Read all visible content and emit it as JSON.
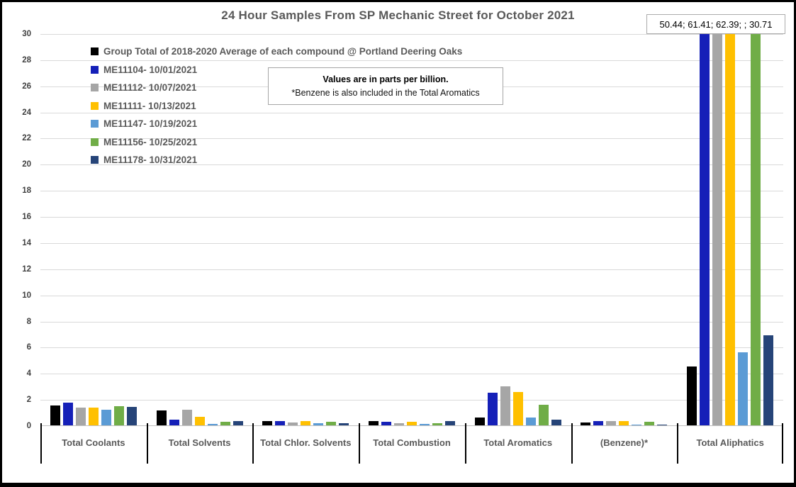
{
  "chart_data": {
    "type": "bar",
    "title": "24 Hour Samples From SP Mechanic Street for October 2021",
    "value_unit": "parts per billion",
    "categories": [
      "Total Coolants",
      "Total Solvents",
      "Total Chlor. Solvents",
      "Total Combustion",
      "Total Aromatics",
      "(Benzene)*",
      "Total Aliphatics"
    ],
    "series": [
      {
        "name": "Group Total of 2018-2020 Average of each compound @ Portland Deering Oaks",
        "color": "#000000",
        "values": [
          1.5,
          1.15,
          0.35,
          0.3,
          0.6,
          0.2,
          4.5
        ]
      },
      {
        "name": "ME11104- 10/01/2021",
        "color": "#1520b8",
        "values": [
          1.75,
          0.45,
          0.3,
          0.25,
          2.5,
          0.3,
          50.44
        ]
      },
      {
        "name": "ME11112- 10/07/2021",
        "color": "#a6a6a6",
        "values": [
          1.35,
          1.2,
          0.2,
          0.15,
          3.0,
          0.35,
          61.41
        ]
      },
      {
        "name": "ME11111- 10/13/2021",
        "color": "#ffc000",
        "values": [
          1.35,
          0.65,
          0.3,
          0.25,
          2.55,
          0.35,
          62.39
        ]
      },
      {
        "name": "ME11147- 10/19/2021",
        "color": "#5b9bd5",
        "values": [
          1.2,
          0.1,
          0.15,
          0.1,
          0.6,
          0.05,
          5.6
        ]
      },
      {
        "name": "ME11156- 10/25/2021",
        "color": "#70ad47",
        "values": [
          1.45,
          0.25,
          0.28,
          0.15,
          1.6,
          0.25,
          30.71
        ]
      },
      {
        "name": "ME11178- 10/31/2021",
        "color": "#264478",
        "values": [
          1.4,
          0.3,
          0.18,
          0.35,
          0.45,
          0.07,
          6.9
        ]
      }
    ],
    "ylim": [
      0,
      30
    ],
    "ytick_step": 2,
    "grid": true,
    "legend_position": "inside-top-left",
    "annotations": {
      "overflow_values": "50.44; 61.41; 62.39; ; 30.71",
      "note_line1": "Values are in parts per billion.",
      "note_line2": "*Benzene is also included in the Total Aromatics"
    }
  }
}
